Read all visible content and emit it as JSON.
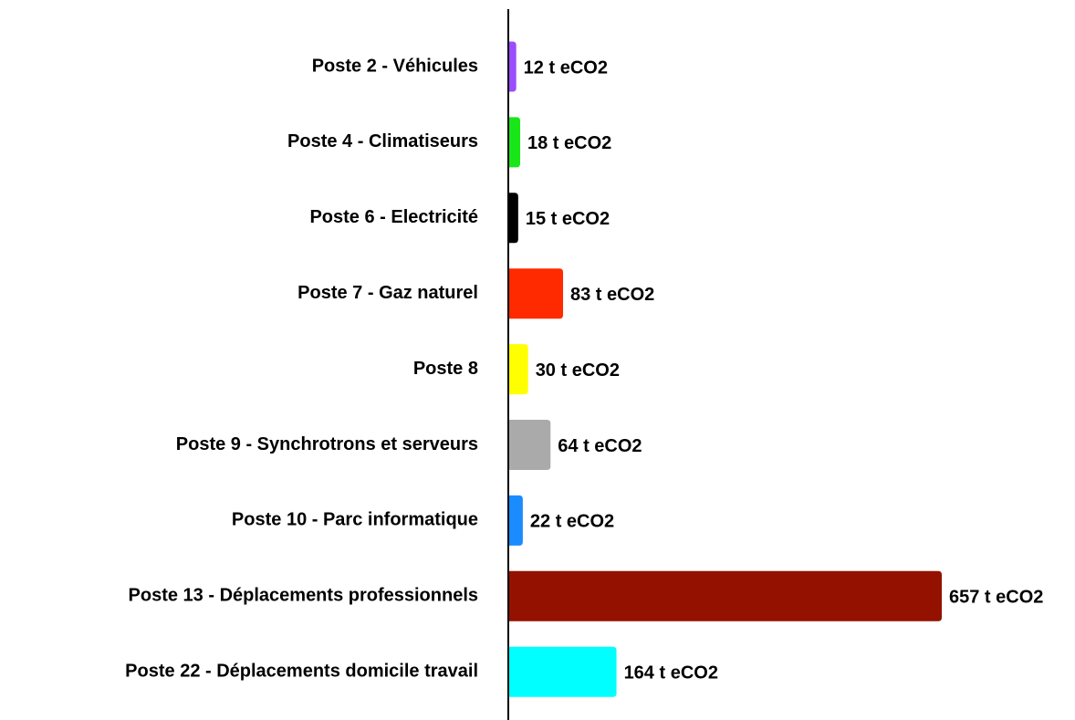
{
  "chart_data": {
    "type": "hbar",
    "categories": [
      "Poste 2 - Véhicules",
      "Poste 4 - Climatiseurs",
      "Poste 6 - Electricité",
      "Poste 7 - Gaz naturel",
      "Poste 8",
      "Poste 9 - Synchrotrons et serveurs",
      "Poste 10 - Parc informatique",
      "Poste 13 - Déplacements professionnels",
      "Poste 22 - Déplacements domicile travail"
    ],
    "values": [
      12,
      18,
      15,
      83,
      30,
      64,
      22,
      657,
      164
    ],
    "value_labels": [
      "12 t eCO2",
      "18 t eCO2",
      "15 t eCO2",
      "83 t eCO2",
      "30 t eCO2",
      "64 t eCO2",
      "22 t eCO2",
      "657 t eCO2",
      "164 t eCO2"
    ],
    "colors": [
      "#9b4dff",
      "#19e619",
      "#000000",
      "#ff2a00",
      "#ffff00",
      "#aaaaaa",
      "#1a8cff",
      "#941100",
      "#00ffff"
    ]
  }
}
